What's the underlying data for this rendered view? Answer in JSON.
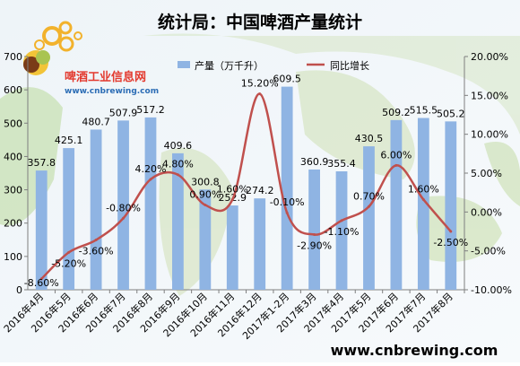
{
  "chart_data": {
    "type": "bar",
    "title": "统计局：中国啤酒产量统计",
    "categories": [
      "2016年4月",
      "2016年5月",
      "2016年6月",
      "2016年7月",
      "2016年8月",
      "2016年9月",
      "2016年10月",
      "2016年11月",
      "2016年12月",
      "2017年1-2月",
      "2017年3月",
      "2017年4月",
      "2017年5月",
      "2017年6月",
      "2017年7月",
      "2017年8月"
    ],
    "series": [
      {
        "name": "产量（万千升）",
        "type": "bar",
        "axis": "left",
        "color": "#8fb4e3",
        "values": [
          357.8,
          425.1,
          480.7,
          507.9,
          517.2,
          409.6,
          300.8,
          252.9,
          274.2,
          609.5,
          360.9,
          355.4,
          430.5,
          509.2,
          515.5,
          505.2
        ],
        "labels": [
          "357.8",
          "425.1",
          "480.7",
          "507.9",
          "517.2",
          "409.6",
          "300.8",
          "252.9",
          "274.2",
          "609.5",
          "360.9",
          "355.4",
          "430.5",
          "509.2",
          "515.5",
          "505.2"
        ]
      },
      {
        "name": "同比增长",
        "type": "line",
        "axis": "right",
        "color": "#c0504d",
        "values": [
          -8.6,
          -5.2,
          -3.6,
          -0.8,
          4.2,
          4.8,
          0.9,
          1.6,
          15.2,
          -0.1,
          -2.9,
          -1.1,
          0.7,
          6.0,
          1.6,
          -2.5
        ],
        "labels": [
          "-8.60%",
          "-5.20%",
          "-3.60%",
          "-0.80%",
          "4.20%",
          "4.80%",
          "0.90%",
          "1.60%",
          "15.20%",
          "-0.10%",
          "-2.90%",
          "-1.10%",
          "0.70%",
          "6.00%",
          "1.60%",
          "-2.50%"
        ]
      }
    ],
    "y_left": {
      "min": 0,
      "max": 700,
      "step": 100,
      "ticks": [
        "0",
        "100",
        "200",
        "300",
        "400",
        "500",
        "600",
        "700"
      ]
    },
    "y_right": {
      "min": -10,
      "max": 20,
      "step": 5,
      "ticks": [
        "-10.00%",
        "-5.00%",
        "0.00%",
        "5.00%",
        "10.00%",
        "15.00%",
        "20.00%"
      ]
    },
    "legend": "top",
    "grid": false
  },
  "watermark": {
    "logo_text": "啤酒工业信息网",
    "logo_url": "www.cnbrewing.com",
    "footer_url": "www.cnbrewing.com"
  }
}
